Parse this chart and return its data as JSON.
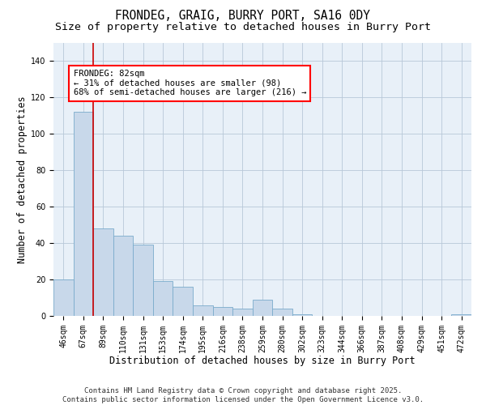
{
  "title": "FRONDEG, GRAIG, BURRY PORT, SA16 0DY",
  "subtitle": "Size of property relative to detached houses in Burry Port",
  "xlabel": "Distribution of detached houses by size in Burry Port",
  "ylabel": "Number of detached properties",
  "categories": [
    "46sqm",
    "67sqm",
    "89sqm",
    "110sqm",
    "131sqm",
    "153sqm",
    "174sqm",
    "195sqm",
    "216sqm",
    "238sqm",
    "259sqm",
    "280sqm",
    "302sqm",
    "323sqm",
    "344sqm",
    "366sqm",
    "387sqm",
    "408sqm",
    "429sqm",
    "451sqm",
    "472sqm"
  ],
  "values": [
    20,
    112,
    48,
    44,
    39,
    19,
    16,
    6,
    5,
    4,
    9,
    4,
    1,
    0,
    0,
    0,
    0,
    0,
    0,
    0,
    1
  ],
  "bar_color": "#c8d8ea",
  "bar_edge_color": "#7aabcc",
  "bar_edge_width": 0.6,
  "property_line_x": 1.5,
  "property_line_color": "#cc0000",
  "annotation_box_text": "FRONDEG: 82sqm\n← 31% of detached houses are smaller (98)\n68% of semi-detached houses are larger (216) →",
  "ylim": [
    0,
    150
  ],
  "yticks": [
    0,
    20,
    40,
    60,
    80,
    100,
    120,
    140
  ],
  "grid_color": "#b8c8d8",
  "background_color": "#e8f0f8",
  "footer_text": "Contains HM Land Registry data © Crown copyright and database right 2025.\nContains public sector information licensed under the Open Government Licence v3.0.",
  "title_fontsize": 10.5,
  "subtitle_fontsize": 9.5,
  "xlabel_fontsize": 8.5,
  "ylabel_fontsize": 8.5,
  "tick_fontsize": 7,
  "annotation_fontsize": 7.5,
  "footer_fontsize": 6.5
}
